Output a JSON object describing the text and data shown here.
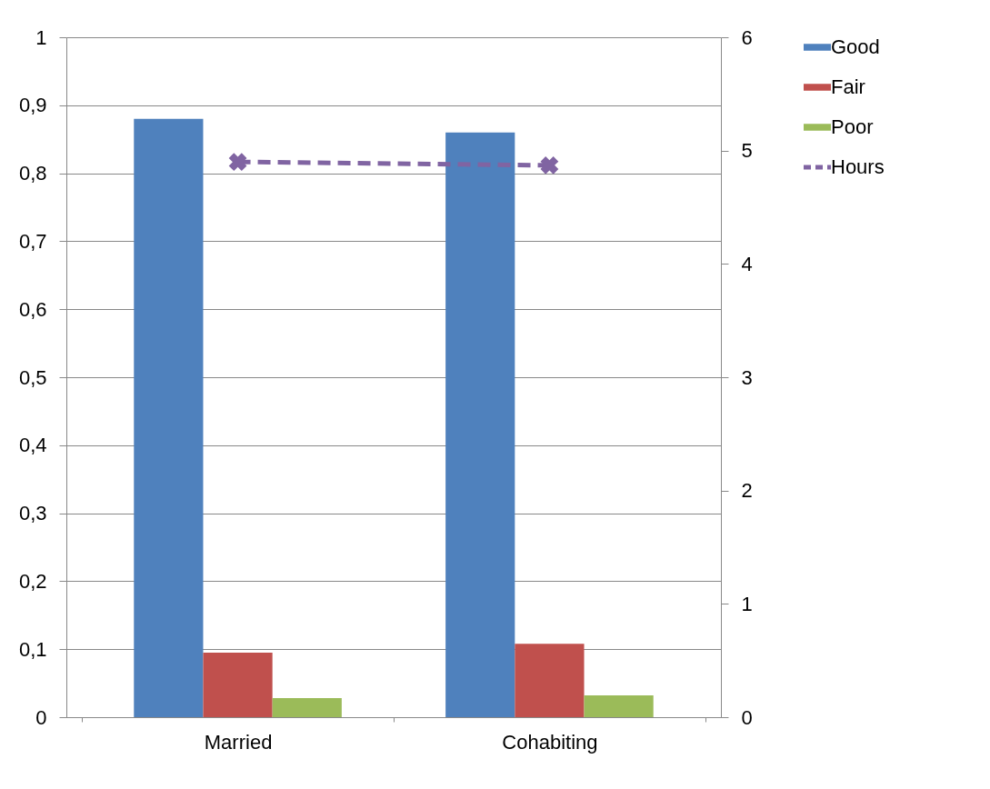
{
  "chart_data": {
    "type": "bar",
    "categories": [
      "Married",
      "Cohabiting"
    ],
    "series": [
      {
        "name": "Good",
        "color": "#4f81bd",
        "values": [
          0.88,
          0.86
        ]
      },
      {
        "name": "Fair",
        "color": "#c0504d",
        "values": [
          0.095,
          0.108
        ]
      },
      {
        "name": "Poor",
        "color": "#9bbb59",
        "values": [
          0.028,
          0.032
        ]
      },
      {
        "name": "Hours",
        "type": "line",
        "axis": "y2",
        "color": "#8064a2",
        "line_style": "dashed",
        "marker": "cross",
        "values": [
          4.9,
          4.87
        ]
      }
    ],
    "ylim": [
      0,
      1
    ],
    "yticks": [
      0,
      {
        "value": 0.1,
        "label": "0,1"
      },
      {
        "value": 0.2,
        "label": "0,2"
      },
      {
        "value": 0.3,
        "label": "0,3"
      },
      {
        "value": 0.4,
        "label": "0,4"
      },
      {
        "value": 0.5,
        "label": "0,5"
      },
      {
        "value": 0.6,
        "label": "0,6"
      },
      {
        "value": 0.7,
        "label": "0,7"
      },
      {
        "value": 0.8,
        "label": "0,8"
      },
      {
        "value": 0.9,
        "label": "0,9"
      },
      1
    ],
    "y2lim": [
      0,
      6
    ],
    "y2ticks": [
      0,
      1,
      2,
      3,
      4,
      5,
      6
    ],
    "grid": "y",
    "legend": "right"
  }
}
